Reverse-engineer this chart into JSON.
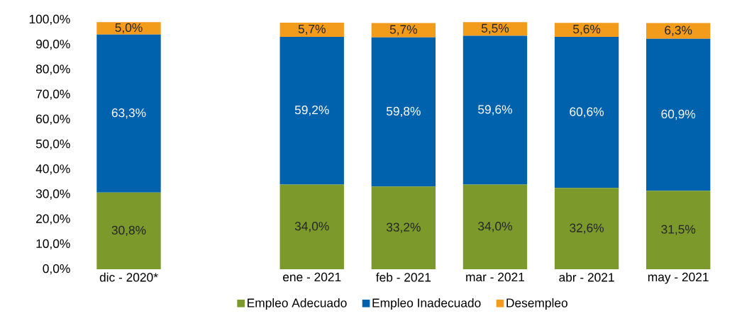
{
  "chart_data": {
    "type": "bar",
    "stacked": true,
    "categories": [
      "dic - 2020*",
      null,
      "ene - 2021",
      "feb - 2021",
      "mar - 2021",
      "abr - 2021",
      "may - 2021"
    ],
    "series": [
      {
        "name": "Empleo Adecuado",
        "color": "#7b9a2b",
        "values": [
          30.8,
          null,
          34.0,
          33.2,
          34.0,
          32.6,
          31.5
        ],
        "value_labels": [
          "30,8%",
          null,
          "34,0%",
          "33,2%",
          "34,0%",
          "32,6%",
          "31,5%"
        ]
      },
      {
        "name": "Empleo Inadecuado",
        "color": "#0061ad",
        "values": [
          63.3,
          null,
          59.2,
          59.8,
          59.6,
          60.6,
          60.9
        ],
        "value_labels": [
          "63,3%",
          null,
          "59,2%",
          "59,8%",
          "59,6%",
          "60,6%",
          "60,9%"
        ]
      },
      {
        "name": "Desempleo",
        "color": "#f39c1b",
        "values": [
          5.0,
          null,
          5.7,
          5.7,
          5.5,
          5.6,
          6.3
        ],
        "value_labels": [
          "5,0%",
          null,
          "5,7%",
          "5,7%",
          "5,5%",
          "5,6%",
          "6,3%"
        ]
      }
    ],
    "ylim": [
      0,
      100
    ],
    "yticks": [
      {
        "value": 0,
        "label": "0,0%"
      },
      {
        "value": 10,
        "label": "10,0%"
      },
      {
        "value": 20,
        "label": "20,0%"
      },
      {
        "value": 30,
        "label": "30,0%"
      },
      {
        "value": 40,
        "label": "40,0%"
      },
      {
        "value": 50,
        "label": "50,0%"
      },
      {
        "value": 60,
        "label": "60,0%"
      },
      {
        "value": 70,
        "label": "70,0%"
      },
      {
        "value": 80,
        "label": "80,0%"
      },
      {
        "value": 90,
        "label": "90,0%"
      },
      {
        "value": 100,
        "label": "100,0%"
      }
    ],
    "grid": false,
    "legend": "bottom"
  }
}
